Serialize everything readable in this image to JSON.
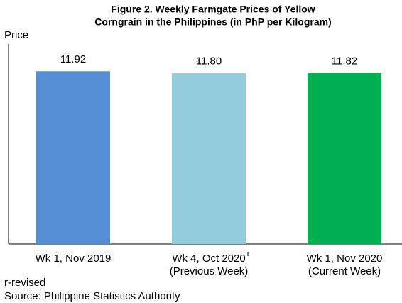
{
  "chart_data": {
    "type": "bar",
    "title": [
      "Figure 2. Weekly Farmgate Prices of Yellow",
      "Corngrain in the Philippines (in PhP per Kilogram)"
    ],
    "ylabel": "Price",
    "categories": [
      [
        "Wk 1, Nov 2019"
      ],
      [
        "Wk 4, Oct 2020",
        "(Previous Week)"
      ],
      [
        "Wk 1, Nov 2020",
        "(Current Week)"
      ]
    ],
    "category_superscripts": [
      null,
      "r",
      null
    ],
    "values": [
      11.92,
      11.8,
      11.82
    ],
    "value_labels": [
      "11.92",
      "11.80",
      "11.82"
    ],
    "colors": [
      "#558ed5",
      "#93cddd",
      "#00b050"
    ],
    "ylim": [
      0,
      13.8
    ],
    "notes": [
      "r-revised",
      "Source: Philippine Statistics Authority"
    ]
  }
}
